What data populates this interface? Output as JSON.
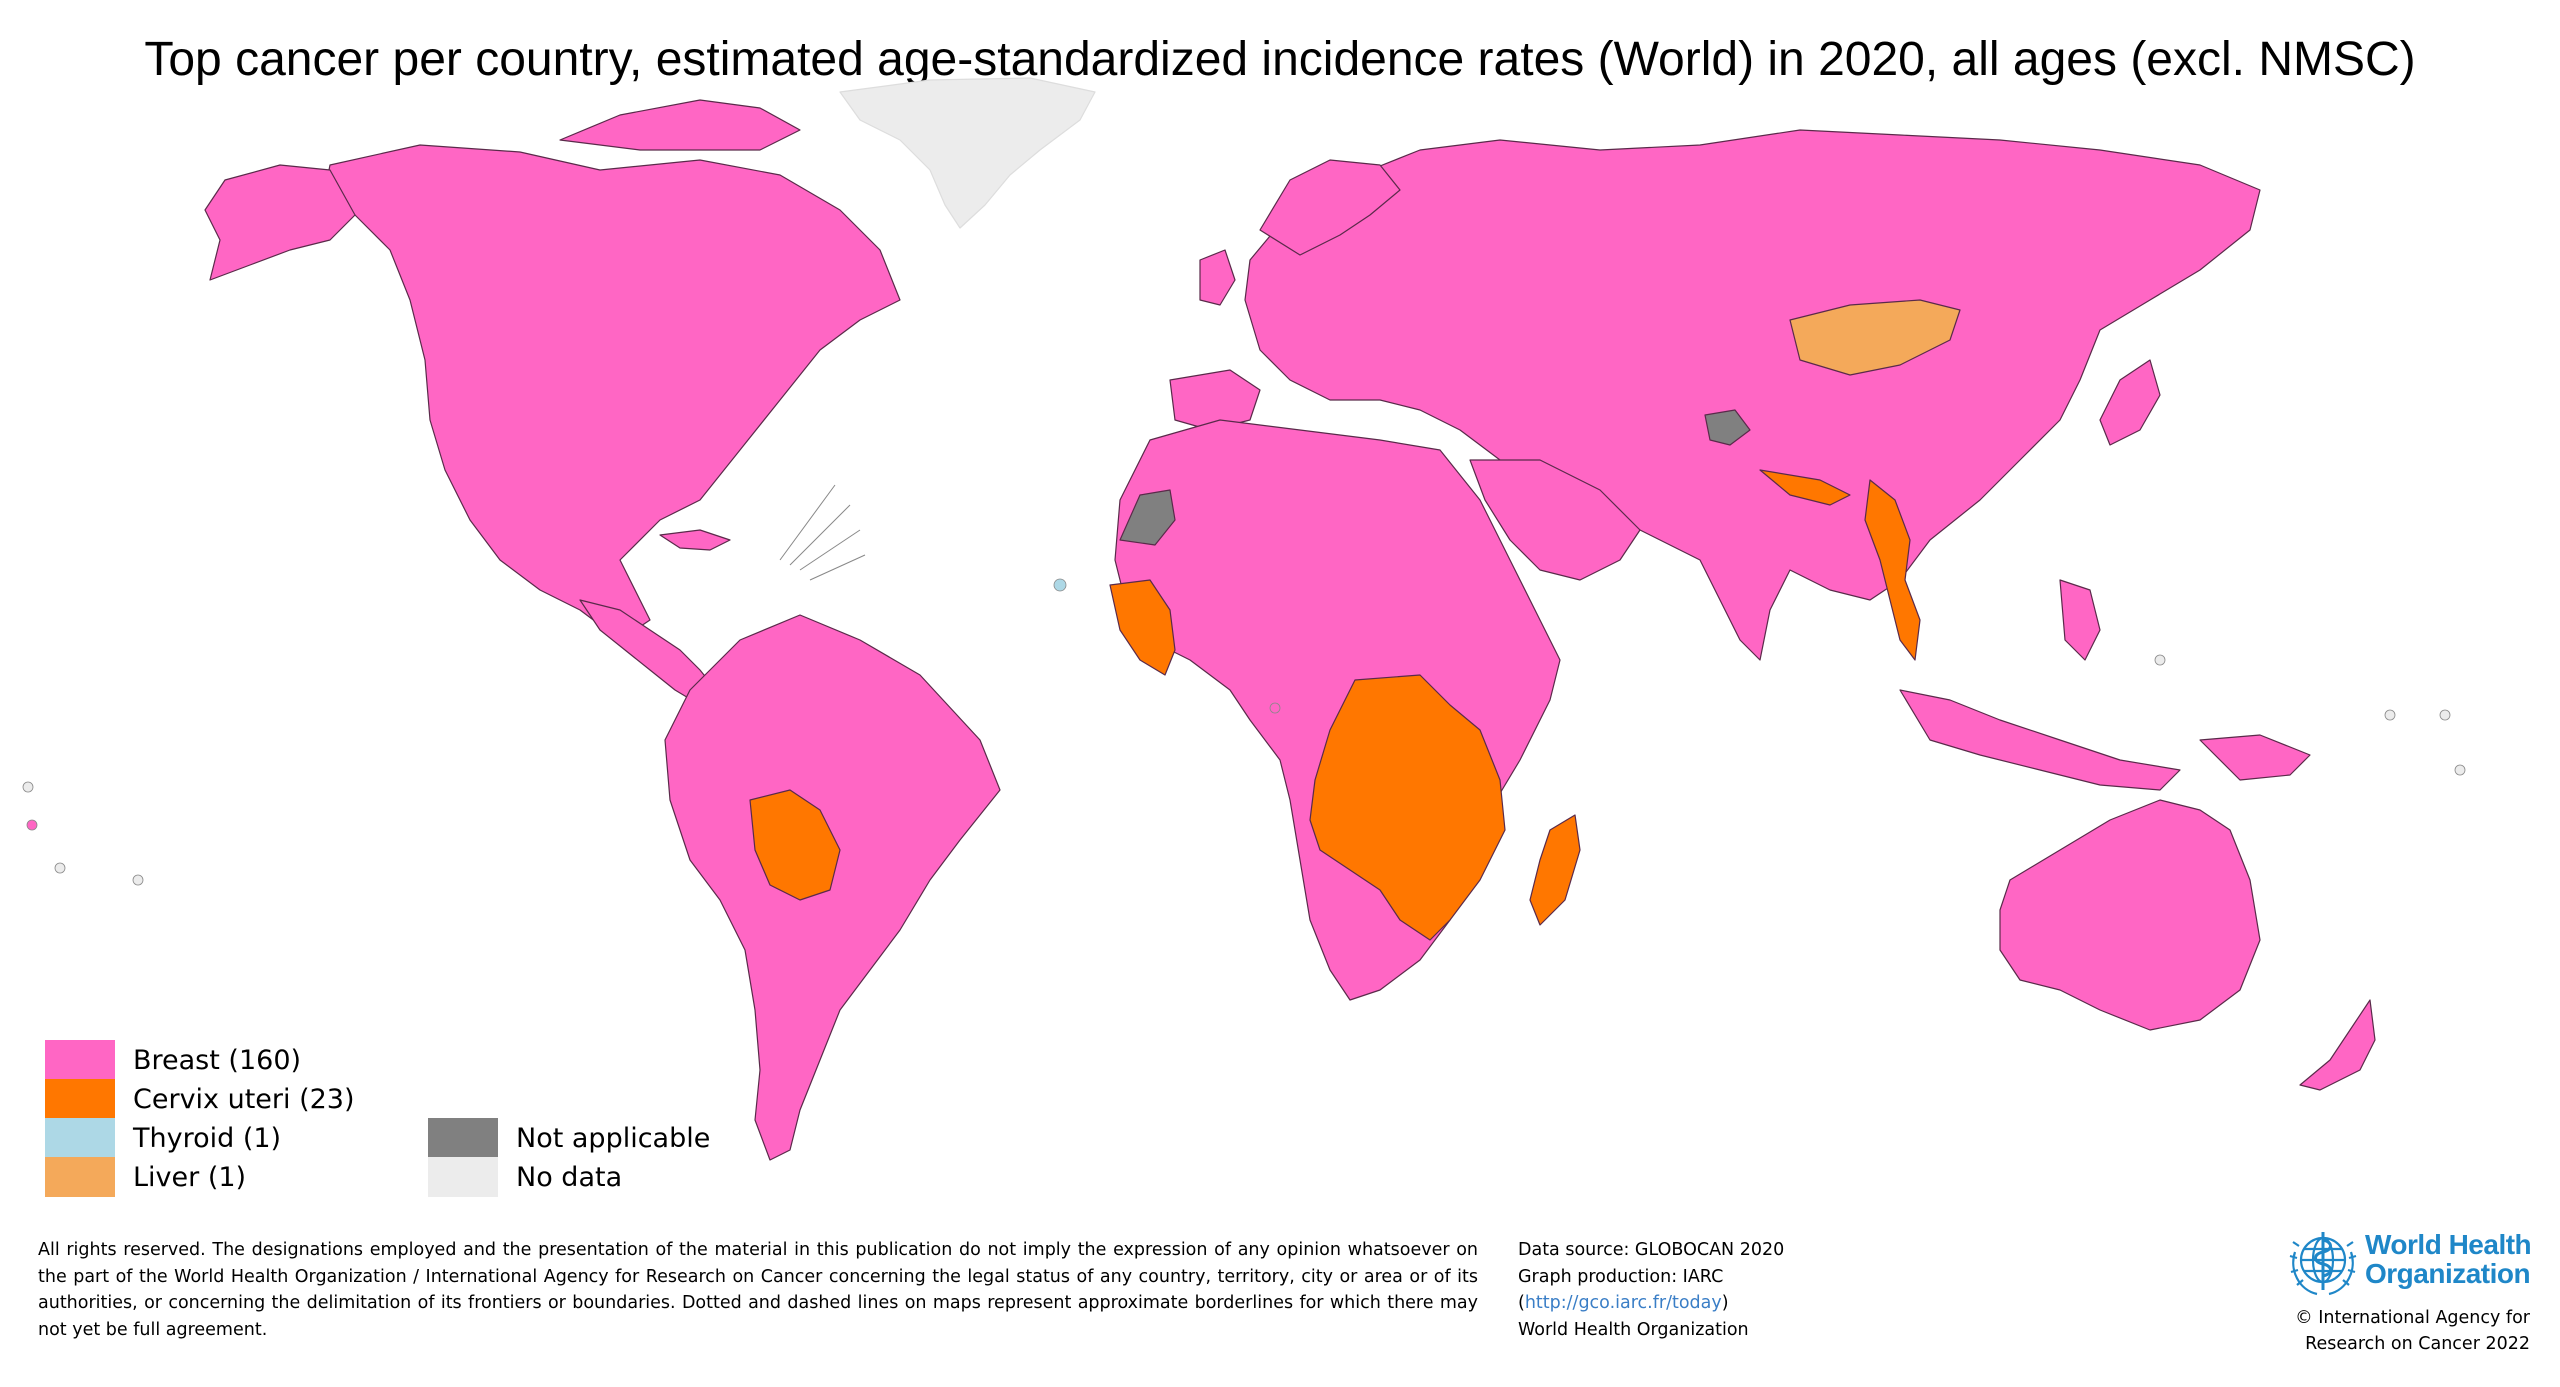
{
  "title": "Top cancer per country, estimated age-standardized incidence rates (World) in 2020, all ages (excl. NMSC)",
  "colors": {
    "breast": "#ff66c4",
    "cervix": "#ff7700",
    "thyroid": "#add8e6",
    "liver": "#f4a95a",
    "not_applicable": "#808080",
    "no_data": "#ececec",
    "border": "#5a2a4a",
    "who_blue": "#1f87c8"
  },
  "legend": {
    "breast": "Breast (160)",
    "cervix": "Cervix uteri (23)",
    "thyroid": "Thyroid (1)",
    "liver": "Liver (1)",
    "not_applicable": "Not applicable",
    "no_data": "No data"
  },
  "disclaimer": "All rights reserved. The designations employed and the presentation of the material in this publication do not imply the expression of any opinion whatsoever on the part of the World Health Organization / International Agency for Research on Cancer concerning the legal status of any country, territory, city or area or of its authorities, or concerning the delimitation of its frontiers or boundaries. Dotted and dashed lines on maps represent approximate borderlines for which there may not yet be full agreement.",
  "source": {
    "line1": "Data source: GLOBOCAN 2020",
    "line2": "Graph production: IARC",
    "open_paren": "(",
    "url": "http://gco.iarc.fr/today",
    "close_paren": ")",
    "line4": "World Health Organization"
  },
  "logo": {
    "line1": "World Health",
    "line2": "Organization",
    "emblem_icon": "who-emblem-icon"
  },
  "copyright": {
    "line1": "© International Agency for",
    "line2": "Research on Cancer 2022"
  }
}
